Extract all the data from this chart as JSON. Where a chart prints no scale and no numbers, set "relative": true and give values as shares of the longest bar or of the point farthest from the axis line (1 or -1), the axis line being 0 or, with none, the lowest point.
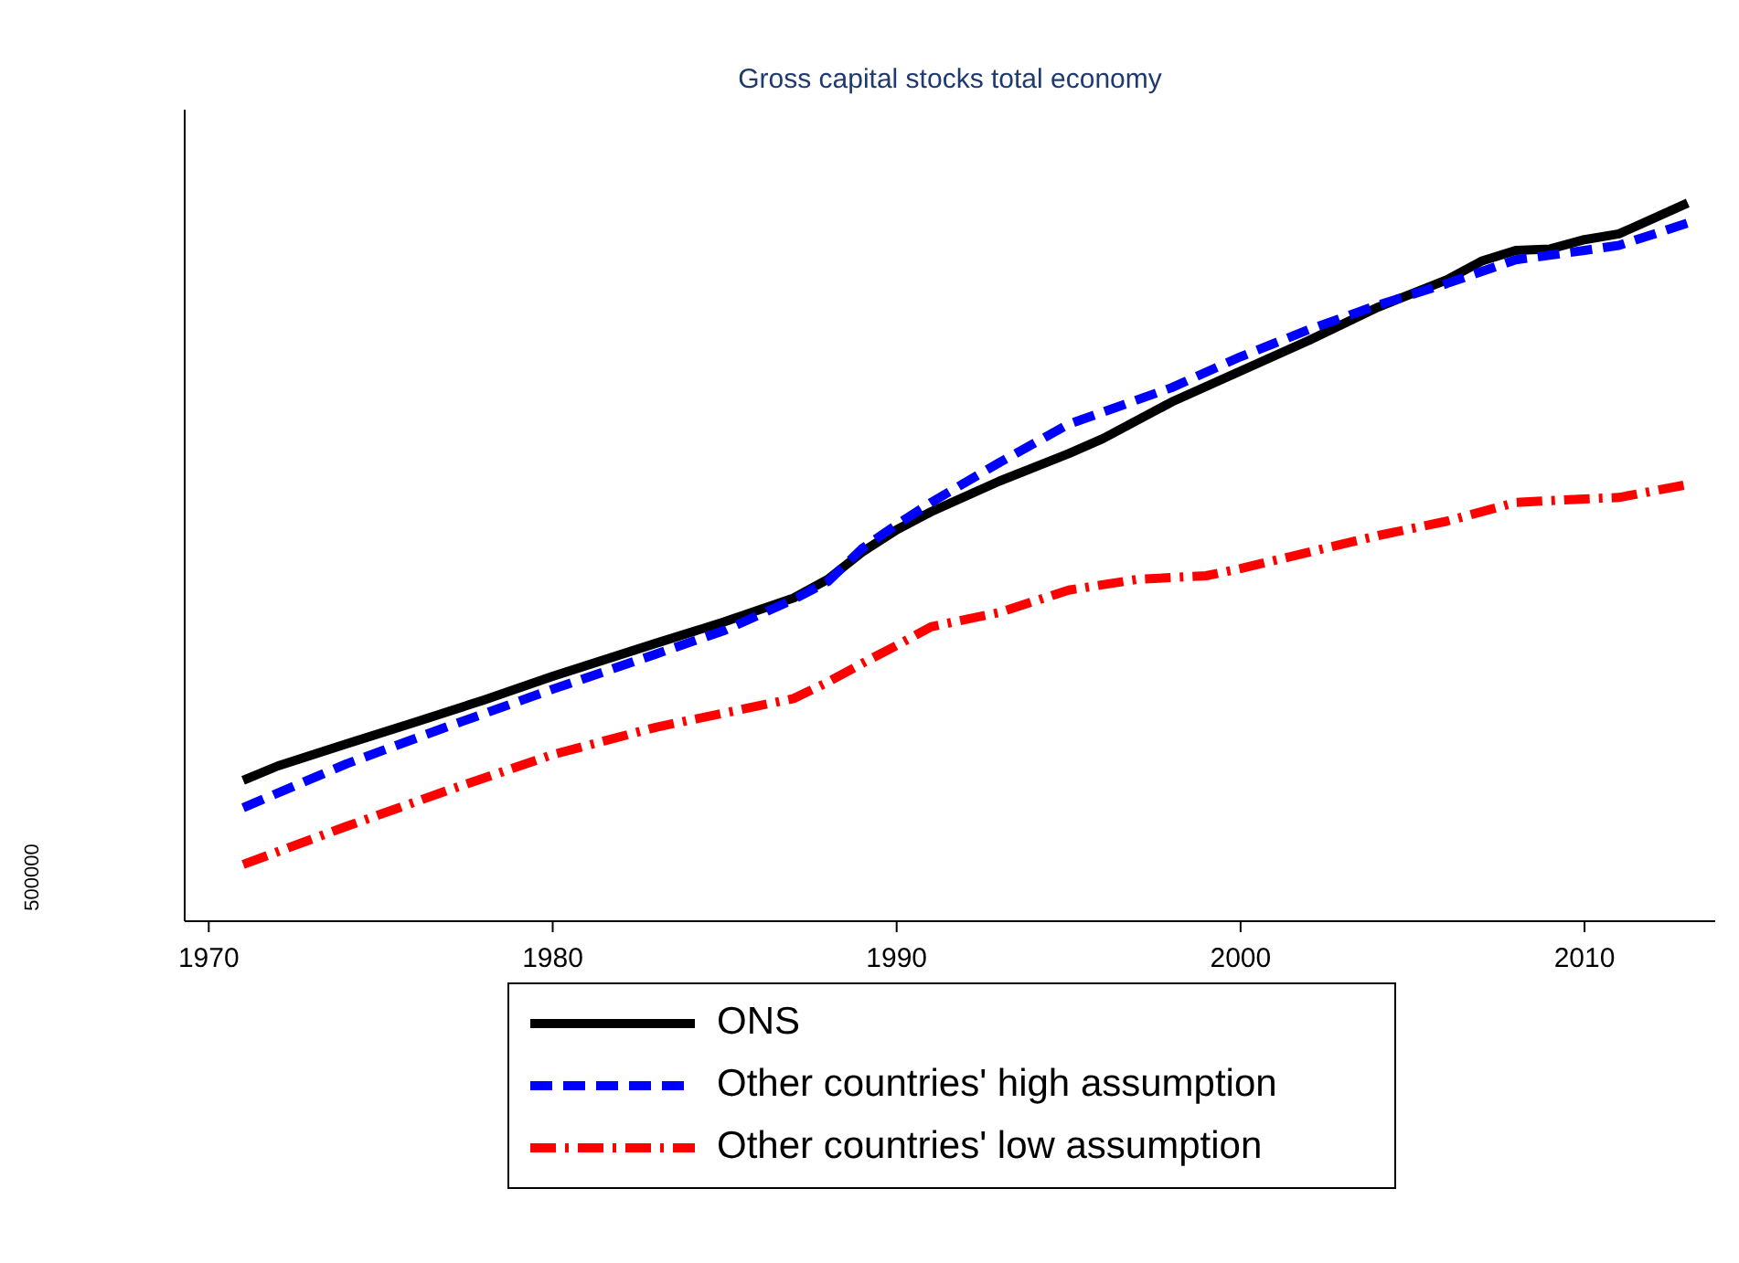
{
  "chart_data": {
    "type": "line",
    "title": "Gross capital stocks total economy",
    "relative": true,
    "xlim": [
      1969.3,
      2013.8
    ],
    "xticks": [
      1970,
      1980,
      1990,
      2000,
      2010
    ],
    "legend": "bottom",
    "annotations": [
      "500000"
    ],
    "series": [
      {
        "name": "ONS",
        "color": "#000000",
        "line_style": "solid",
        "x": [
          1971,
          1972,
          1974,
          1976,
          1978,
          1980,
          1983,
          1985,
          1987,
          1988,
          1989,
          1990,
          1991,
          1993,
          1995,
          1996,
          1998,
          2000,
          2002,
          2004,
          2006,
          2007,
          2008,
          2009,
          2010,
          2011,
          2013
        ],
        "values": [
          0.196,
          0.216,
          0.247,
          0.277,
          0.308,
          0.341,
          0.387,
          0.417,
          0.45,
          0.476,
          0.514,
          0.545,
          0.57,
          0.613,
          0.651,
          0.672,
          0.723,
          0.766,
          0.809,
          0.855,
          0.893,
          0.919,
          0.934,
          0.936,
          0.949,
          0.957,
          1
        ]
      },
      {
        "name": "Other countries' high assumption",
        "color": "#0000ff",
        "line_style": "dashed",
        "x": [
          1971,
          1974,
          1977,
          1980,
          1983,
          1985,
          1987,
          1988,
          1989,
          1990,
          1991,
          1993,
          1995,
          1998,
          2000,
          2002,
          2004,
          2006,
          2008,
          2010,
          2011,
          2013
        ],
        "values": [
          0.158,
          0.219,
          0.272,
          0.323,
          0.372,
          0.405,
          0.448,
          0.473,
          0.519,
          0.552,
          0.583,
          0.639,
          0.692,
          0.743,
          0.786,
          0.824,
          0.858,
          0.888,
          0.921,
          0.934,
          0.941,
          0.972
        ]
      },
      {
        "name": "Other countries' low assumption",
        "color": "#ff0000",
        "line_style": "dashdot",
        "x": [
          1971,
          1974,
          1977,
          1980,
          1983,
          1985,
          1987,
          1988,
          1989,
          1990,
          1991,
          1993,
          1995,
          1997,
          1999,
          2000,
          2002,
          2004,
          2006,
          2008,
          2010,
          2011,
          2013
        ],
        "values": [
          0.079,
          0.132,
          0.183,
          0.232,
          0.27,
          0.29,
          0.31,
          0.333,
          0.359,
          0.384,
          0.41,
          0.43,
          0.461,
          0.476,
          0.481,
          0.491,
          0.514,
          0.537,
          0.557,
          0.583,
          0.588,
          0.59,
          0.608
        ]
      }
    ]
  }
}
